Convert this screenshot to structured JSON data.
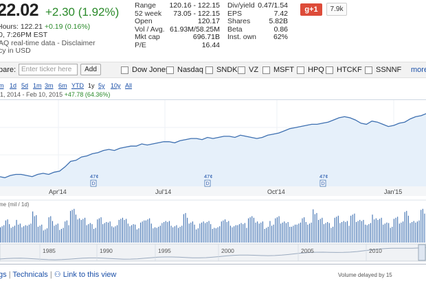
{
  "quote": {
    "price": "22.02",
    "change": "+2.30 (1.92%)",
    "after_hours_label": "Hours:",
    "after_hours_price": "122.21",
    "after_hours_change": "+0.19 (0.16%)",
    "time": "0, 7:26PM EST",
    "disclaimer": "AQ real-time data - Disclaimer",
    "currency": "cy in USD"
  },
  "stats_left": [
    {
      "label": "Range",
      "value": "120.16 - 122.15"
    },
    {
      "label": "52 week",
      "value": "73.05 - 122.15"
    },
    {
      "label": "Open",
      "value": "120.17"
    },
    {
      "label": "Vol / Avg.",
      "value": "61.93M/58.25M"
    },
    {
      "label": "Mkt cap",
      "value": "696.71B"
    },
    {
      "label": "P/E",
      "value": "16.44"
    }
  ],
  "stats_right": [
    {
      "label": "Div/yield",
      "value": "0.47/1.54"
    },
    {
      "label": "EPS",
      "value": "7.42"
    },
    {
      "label": "Shares",
      "value": "5.82B"
    },
    {
      "label": "Beta",
      "value": "0.86"
    },
    {
      "label": "Inst. own",
      "value": "62%"
    }
  ],
  "social": {
    "gplus": "g+1",
    "count": "7.9k"
  },
  "compare": {
    "label": "pare:",
    "placeholder": "Enter ticker here",
    "add_label": "Add",
    "items": [
      "Dow Jones",
      "Nasdaq",
      "SNDK",
      "VZ",
      "MSFT",
      "HPQ",
      "HTCKF",
      "SSNNF"
    ],
    "more": "more"
  },
  "zoom": {
    "links": [
      "m",
      "1d",
      "5d",
      "1m",
      "3m",
      "6m",
      "YTD",
      "1y",
      "5y",
      "10y",
      "All"
    ],
    "active": "1y"
  },
  "range_text": {
    "dates": "1, 2014 - Feb 10, 2015",
    "change": "+47.78 (64.36%)"
  },
  "chart_data": {
    "type": "line",
    "x_ticks": [
      "Apr'14",
      "Jul'14",
      "Oct'14",
      "Jan'15"
    ],
    "dividend_marker_label": "47¢",
    "dividend_marker_letter": "D",
    "volume_label": "me (mil / 1d)",
    "timeline_ticks": [
      "1985",
      "1990",
      "1995",
      "2000",
      "2005",
      "2010"
    ],
    "price_series": [
      64,
      63,
      65,
      66,
      66,
      65,
      64,
      66,
      67,
      66,
      68,
      69,
      73,
      78,
      79,
      82,
      83,
      85,
      86,
      88,
      89,
      88,
      90,
      91,
      92,
      92,
      94,
      93,
      94,
      95,
      96,
      96,
      95,
      97,
      98,
      99,
      99,
      98,
      100,
      99,
      100,
      101,
      101,
      100,
      102,
      101,
      100,
      99,
      100,
      102,
      103,
      104,
      106,
      108,
      109,
      110,
      111,
      112,
      112,
      113,
      114,
      116,
      118,
      119,
      118,
      116,
      113,
      112,
      115,
      114,
      112,
      110,
      111,
      113,
      114,
      117,
      119,
      120,
      122
    ],
    "volume_series": [
      34,
      40,
      30,
      38,
      28,
      35,
      55,
      30,
      27,
      45,
      33,
      29,
      38,
      62,
      48,
      42,
      36,
      31,
      44,
      39,
      35,
      30,
      48,
      41,
      33,
      29,
      37,
      45,
      32,
      28,
      41,
      36,
      30,
      33,
      52,
      38,
      29,
      35,
      40,
      31,
      27,
      44,
      36,
      30,
      38,
      33,
      48,
      42,
      35,
      29,
      37,
      46,
      40,
      34,
      31,
      39,
      44,
      36,
      58,
      42,
      38,
      33,
      47,
      41,
      36,
      52,
      44,
      39,
      35,
      48,
      42,
      37,
      33,
      45,
      40,
      55,
      38,
      43,
      60
    ],
    "accent_color": "#3d6fb0",
    "fill_color": "#e6f0fa"
  },
  "footer": {
    "links": [
      "gs",
      "Technicals",
      "Link to this view"
    ],
    "note": "Volume delayed by 15"
  }
}
